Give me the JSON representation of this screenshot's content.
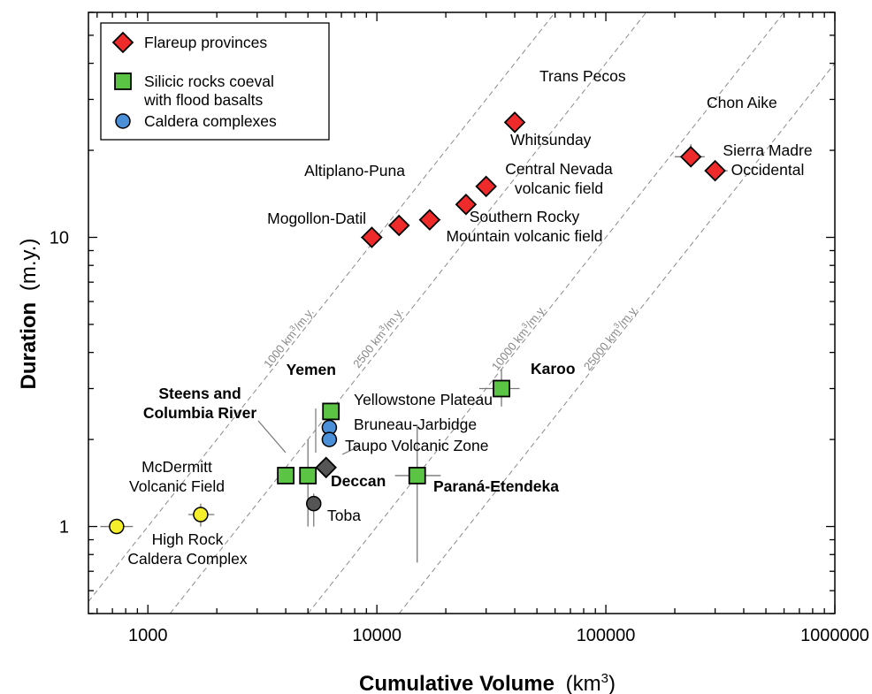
{
  "chart_data": {
    "type": "scatter",
    "x_scale": "log",
    "y_scale": "log",
    "xlim": [
      550,
      1000000
    ],
    "ylim": [
      0.5,
      60
    ],
    "xlabel": "Cumulative Volume",
    "xlabel_unit": "(km",
    "xlabel_unit_sup": "3",
    "xlabel_unit_close": ")",
    "ylabel": "Duration",
    "ylabel_unit": "(m.y.)",
    "x_tick_labels": [
      {
        "value": 1000,
        "label": "1000"
      },
      {
        "value": 10000,
        "label": "10000"
      },
      {
        "value": 100000,
        "label": "100000"
      },
      {
        "value": 1000000,
        "label": "1000000"
      }
    ],
    "y_tick_labels": [
      {
        "value": 1,
        "label": "1"
      },
      {
        "value": 10,
        "label": "10"
      }
    ],
    "grid": false,
    "legend_position": "top-left",
    "colors": {
      "flareup": "#ee2a2a",
      "silicic": "#5cc444",
      "caldera": "#4b8fd9",
      "yellow": "#f4ef2a",
      "dark": "#555555",
      "rate_line": "#8a8a8a",
      "error_bar": "#777777"
    },
    "legend": [
      {
        "marker": "diamond",
        "color": "#ee2a2a",
        "lines": [
          "Flareup provinces"
        ]
      },
      {
        "marker": "square",
        "color": "#5cc444",
        "lines": [
          "Silicic rocks coeval",
          "with flood basalts"
        ]
      },
      {
        "marker": "circle",
        "color": "#4b8fd9",
        "lines": [
          "Caldera complexes"
        ]
      }
    ],
    "rate_lines": [
      {
        "rate": 1000,
        "label": "1000 km",
        "sup": "3",
        "suffix": "/m.y."
      },
      {
        "rate": 2500,
        "label": "2500 km",
        "sup": "3",
        "suffix": "/m.y."
      },
      {
        "rate": 10000,
        "label": "10000 km",
        "sup": "3",
        "suffix": "/m.y."
      },
      {
        "rate": 25000,
        "label": "25000 km",
        "sup": "3",
        "suffix": "/m.y."
      }
    ],
    "series": [
      {
        "name": "Flareup provinces",
        "marker": "diamond",
        "color": "#ee2a2a",
        "points": [
          {
            "label": "Mogollon-Datil",
            "x": 9500,
            "y": 10,
            "xerr": [
              8500,
              10500
            ],
            "yerr": [
              9.3,
              10.8
            ]
          },
          {
            "label": "Altiplano-Puna",
            "x": 12500,
            "y": 11
          },
          {
            "label": "Southern Rocky Mountain volcanic field",
            "x": 17000,
            "y": 11.5,
            "xerr": [
              15500,
              19000
            ]
          },
          {
            "label": "Central Nevada volcanic field",
            "x": 24500,
            "y": 13
          },
          {
            "label": "Whitsunday",
            "x": 30000,
            "y": 15
          },
          {
            "label": "Trans Pecos",
            "x": 40000,
            "y": 25
          },
          {
            "label": "Chon Aike",
            "x": 235000,
            "y": 19,
            "xerr": [
              200000,
              270000
            ],
            "yerr": [
              17.5,
              21
            ]
          },
          {
            "label": "Sierra Madre Occidental",
            "x": 300000,
            "y": 17,
            "xerr": [
              270000,
              340000
            ]
          }
        ]
      },
      {
        "name": "Silicic rocks coeval with flood basalts",
        "marker": "square",
        "color": "#5cc444",
        "points": [
          {
            "label": "Steens and Columbia River",
            "x": 4000,
            "y": 1.5
          },
          {
            "label": "Deccan",
            "x": 5000,
            "y": 1.5,
            "yerr": [
              1.0,
              2.0
            ]
          },
          {
            "label": "Yemen",
            "x": 6300,
            "y": 2.5
          },
          {
            "label": "Paraná-Etendeka",
            "x": 15000,
            "y": 1.5,
            "xerr": [
              12000,
              19000
            ],
            "yerr": [
              0.75,
              2.25
            ]
          },
          {
            "label": "Karoo",
            "x": 35000,
            "y": 3,
            "xerr": [
              28000,
              42000
            ],
            "yerr": [
              2.6,
              3.5
            ]
          }
        ]
      },
      {
        "name": "Caldera complexes",
        "marker": "circle",
        "color": "#4b8fd9",
        "points": [
          {
            "label": "Yellowstone Plateau",
            "x": 6200,
            "y": 2.2
          },
          {
            "label": "Bruneau-Jarbidge",
            "x": 6200,
            "y": 2
          }
        ]
      },
      {
        "marker": "circle",
        "color": "#f4ef2a",
        "points": [
          {
            "label": "High Rock Caldera Complex",
            "x": 730,
            "y": 1,
            "xerr": [
              620,
              860
            ]
          },
          {
            "label": "McDermitt Volcanic Field",
            "x": 1700,
            "y": 1.1,
            "xerr": [
              1500,
              1950
            ],
            "yerr": [
              1.0,
              1.2
            ]
          }
        ]
      },
      {
        "marker": "mixed",
        "color": "#555555",
        "points": [
          {
            "label": "Taupo Volcanic Zone",
            "marker": "diamond",
            "x": 6000,
            "y": 1.6
          },
          {
            "label": "Toba",
            "marker": "circle",
            "x": 5300,
            "y": 1.2,
            "yerr": [
              1.0,
              1.3
            ]
          }
        ]
      }
    ],
    "annotations": [
      {
        "lines": [
          "Trans Pecos"
        ]
      },
      {
        "lines": [
          "Chon Aike"
        ]
      },
      {
        "lines": [
          "Sierra Madre",
          "Occidental"
        ]
      },
      {
        "lines": [
          "Whitsunday"
        ]
      },
      {
        "lines": [
          "Central Nevada",
          "volcanic field"
        ]
      },
      {
        "lines": [
          "Altiplano-Puna"
        ]
      },
      {
        "lines": [
          "Mogollon-Datil"
        ]
      },
      {
        "lines": [
          "Southern Rocky",
          "Mountain volcanic field"
        ]
      },
      {
        "lines": [
          "Yemen"
        ],
        "bold": true
      },
      {
        "lines": [
          "Steens and",
          "Columbia River"
        ],
        "bold": true
      },
      {
        "lines": [
          "Yellowstone Plateau"
        ]
      },
      {
        "lines": [
          "Bruneau-Jarbidge"
        ]
      },
      {
        "lines": [
          "Taupo Volcanic Zone"
        ]
      },
      {
        "lines": [
          "Karoo"
        ],
        "bold": true
      },
      {
        "lines": [
          "Deccan"
        ],
        "bold": true
      },
      {
        "lines": [
          "Paraná-Etendeka"
        ],
        "bold": true
      },
      {
        "lines": [
          "McDermitt",
          "Volcanic Field"
        ]
      },
      {
        "lines": [
          "High Rock",
          "Caldera Complex"
        ]
      },
      {
        "lines": [
          "Toba"
        ]
      }
    ]
  }
}
